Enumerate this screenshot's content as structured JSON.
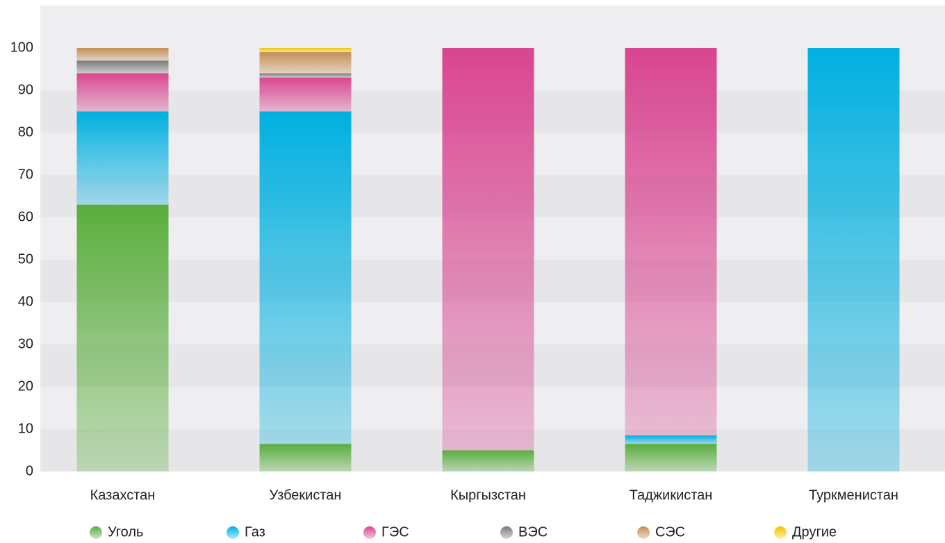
{
  "chart_data": {
    "type": "stacked_bar",
    "categories": [
      "Казахстан",
      "Узбекистан",
      "Кыргызстан",
      "Таджикистан",
      "Туркменистан"
    ],
    "series": [
      {
        "name": "Уголь",
        "color": "#5aae3c",
        "values": [
          63,
          6.5,
          5,
          6.5,
          0
        ]
      },
      {
        "name": "Газ",
        "color": "#00b0e0",
        "values": [
          22,
          78.5,
          0,
          2,
          100
        ]
      },
      {
        "name": "ГЭС",
        "color": "#d94590",
        "values": [
          9,
          8,
          95,
          91.5,
          0
        ]
      },
      {
        "name": "ВЭС",
        "color": "#7a7a7a",
        "values": [
          3,
          1,
          0,
          0,
          0
        ]
      },
      {
        "name": "СЭС",
        "color": "#c48f55",
        "values": [
          3,
          5,
          0,
          0,
          0
        ]
      },
      {
        "name": "Другие",
        "color": "#f5c400",
        "values": [
          0,
          1,
          0,
          0,
          0
        ]
      }
    ],
    "ylim": [
      0,
      110
    ],
    "yticks": [
      0,
      10,
      20,
      30,
      40,
      50,
      60,
      70,
      80,
      90,
      100
    ],
    "grid": true,
    "legend": "bottom"
  }
}
